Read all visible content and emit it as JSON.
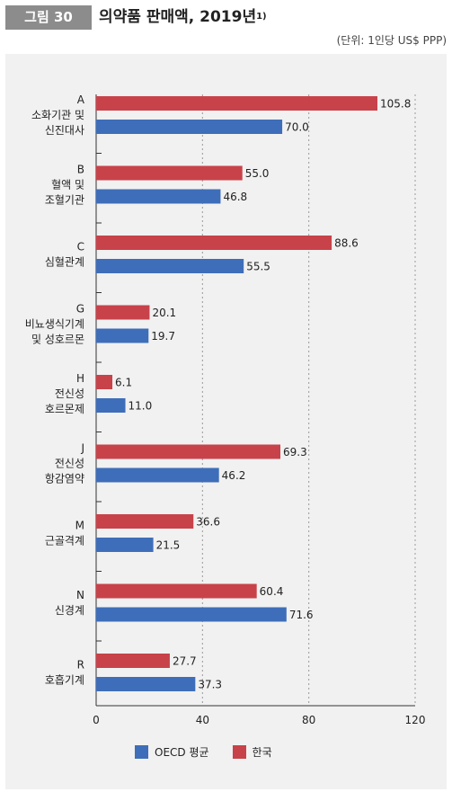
{
  "figure": {
    "badge": "그림 30",
    "title": "의약품 판매액, 2019년",
    "title_note": "1)",
    "unit": "(단위: 1인당 US$ PPP)"
  },
  "colors": {
    "korea": "#c8424a",
    "oecd": "#3e6eb9",
    "panel": "#f1f1f1"
  },
  "chart_data": {
    "type": "bar",
    "orientation": "horizontal",
    "categories": [
      [
        "A",
        "소화기관 및",
        "신진대사"
      ],
      [
        "B",
        "혈액 및",
        "조혈기관"
      ],
      [
        "C",
        "심혈관계"
      ],
      [
        "G",
        "비뇨생식기계",
        "및 성호르몬"
      ],
      [
        "H",
        "전신성",
        "호르몬제"
      ],
      [
        "J",
        "전신성",
        "항감염약"
      ],
      [
        "M",
        "근골격계"
      ],
      [
        "N",
        "신경계"
      ],
      [
        "R",
        "호흡기계"
      ]
    ],
    "series": [
      {
        "name": "한국",
        "color": "#c8424a",
        "values": [
          105.8,
          55.0,
          88.6,
          20.1,
          6.1,
          69.3,
          36.6,
          60.4,
          27.7
        ]
      },
      {
        "name": "OECD 평균",
        "color": "#3e6eb9",
        "values": [
          70.0,
          46.8,
          55.5,
          19.7,
          11.0,
          46.2,
          21.5,
          71.6,
          37.3
        ]
      }
    ],
    "xlim": [
      0,
      120
    ],
    "xticks": [
      0,
      40,
      80,
      120
    ],
    "grid": "vertical dotted",
    "legend": [
      {
        "name": "OECD 평균",
        "color": "#3e6eb9"
      },
      {
        "name": "한국",
        "color": "#c8424a"
      }
    ],
    "legend_position": "bottom"
  }
}
